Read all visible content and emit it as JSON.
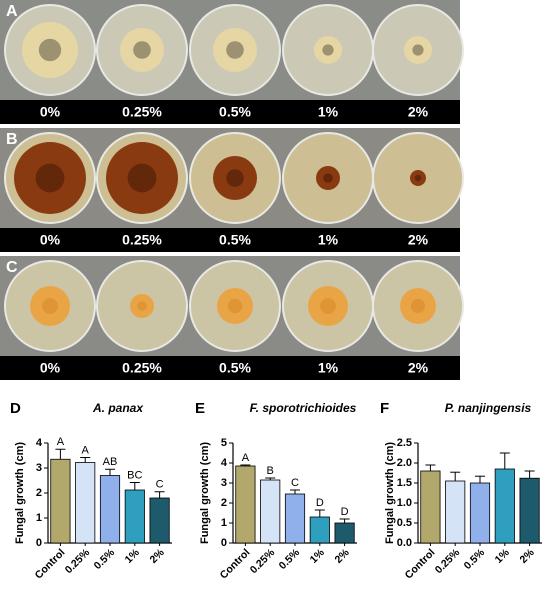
{
  "photo_panels": [
    {
      "letter": "A",
      "labels": [
        "0%",
        "0.25%",
        "0.5%",
        "1%",
        "2%"
      ]
    },
    {
      "letter": "B",
      "labels": [
        "0%",
        "0.25%",
        "0.5%",
        "1%",
        "2%"
      ]
    },
    {
      "letter": "C",
      "labels": [
        "0%",
        "0.25%",
        "0.5%",
        "1%",
        "2%"
      ]
    }
  ],
  "chart_data": [
    {
      "type": "bar",
      "letter": "D",
      "title": "A. panax",
      "y_label": "Fungal growth (cm)",
      "categories": [
        "Control",
        "0.25%",
        "0.5%",
        "1%",
        "2%"
      ],
      "values": [
        3.35,
        3.22,
        2.7,
        2.12,
        1.8
      ],
      "errors": [
        0.4,
        0.2,
        0.25,
        0.3,
        0.25
      ],
      "letters": [
        "A",
        "A",
        "AB",
        "BC",
        "C"
      ],
      "colors": [
        "#b3a86c",
        "#d5e3f6",
        "#8fb0ea",
        "#2f9fc0",
        "#1c5a6c"
      ],
      "ylim": [
        0,
        4
      ],
      "yticks": [
        0,
        1,
        2,
        3,
        4
      ]
    },
    {
      "type": "bar",
      "letter": "E",
      "title": "F. sporotrichioides",
      "y_label": "Fungal growth (cm)",
      "categories": [
        "Control",
        "0.25%",
        "0.5%",
        "1%",
        "2%"
      ],
      "values": [
        3.85,
        3.15,
        2.45,
        1.3,
        1.0
      ],
      "errors": [
        0.05,
        0.1,
        0.2,
        0.35,
        0.2
      ],
      "letters": [
        "A",
        "B",
        "C",
        "D",
        "D"
      ],
      "colors": [
        "#b3a86c",
        "#d5e3f6",
        "#8fb0ea",
        "#2f9fc0",
        "#1c5a6c"
      ],
      "ylim": [
        0,
        5
      ],
      "yticks": [
        0,
        1,
        2,
        3,
        4,
        5
      ]
    },
    {
      "type": "bar",
      "letter": "F",
      "title": "P. nanjingensis",
      "y_label": "Fungal growth (cm)",
      "categories": [
        "Control",
        "0.25%",
        "0.5%",
        "1%",
        "2%"
      ],
      "values": [
        1.8,
        1.55,
        1.5,
        1.85,
        1.62
      ],
      "errors": [
        0.15,
        0.22,
        0.17,
        0.4,
        0.18
      ],
      "colors": [
        "#b3a86c",
        "#d5e3f6",
        "#8fb0ea",
        "#2f9fc0",
        "#1c5a6c"
      ],
      "ylim": [
        0,
        2.5
      ],
      "yticks": [
        {
          "value": 0,
          "label": "0.0"
        },
        0.5,
        {
          "value": 1,
          "label": "1.0"
        },
        1.5,
        {
          "value": 2,
          "label": "2.0"
        },
        2.5
      ]
    }
  ]
}
